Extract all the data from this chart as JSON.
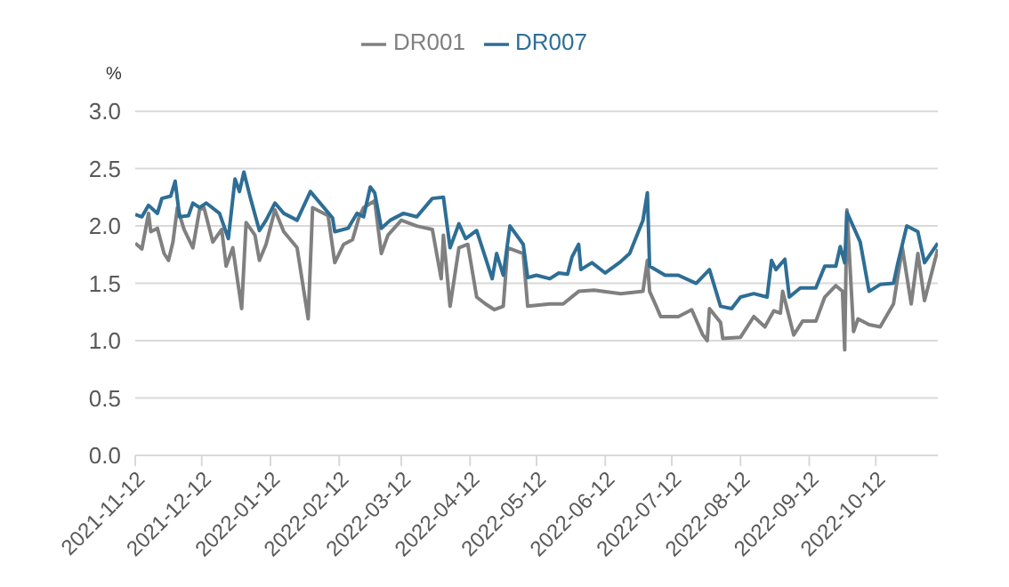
{
  "chart_data": {
    "type": "line",
    "ylabel": "%",
    "xlim": [
      "2021-11-12",
      "2022-11-09"
    ],
    "xticks": [
      "2021-11-12",
      "2021-12-12",
      "2022-01-12",
      "2022-02-12",
      "2022-03-12",
      "2022-04-12",
      "2022-05-12",
      "2022-06-12",
      "2022-07-12",
      "2022-08-12",
      "2022-09-12",
      "2022-10-12"
    ],
    "ylim": [
      0,
      3
    ],
    "yticks": [
      {
        "value": 0,
        "label": "0.0"
      },
      {
        "value": 0.5,
        "label": "0.5"
      },
      {
        "value": 1,
        "label": "1.0"
      },
      {
        "value": 1.5,
        "label": "1.5"
      },
      {
        "value": 2,
        "label": "2.0"
      },
      {
        "value": 2.5,
        "label": "2.5"
      },
      {
        "value": 3,
        "label": "3.0"
      }
    ],
    "grid": "y",
    "legend": "top",
    "marker": "none",
    "line_style": "solid",
    "series": [
      {
        "name": "DR001",
        "color": "#808080",
        "x": [
          "2021-11-12",
          "2021-11-15",
          "2021-11-18",
          "2021-11-19",
          "2021-11-22",
          "2021-11-25",
          "2021-11-27",
          "2021-11-29",
          "2021-12-01",
          "2021-12-04",
          "2021-12-08",
          "2021-12-11",
          "2021-12-13",
          "2021-12-17",
          "2021-12-21",
          "2021-12-23",
          "2021-12-26",
          "2021-12-30",
          "2022-01-01",
          "2022-01-05",
          "2022-01-07",
          "2022-01-10",
          "2022-01-14",
          "2022-01-18",
          "2022-01-24",
          "2022-01-29",
          "2022-01-31",
          "2022-02-07",
          "2022-02-10",
          "2022-02-14",
          "2022-02-18",
          "2022-02-21",
          "2022-02-23",
          "2022-02-28",
          "2022-03-03",
          "2022-03-06",
          "2022-03-12",
          "2022-03-19",
          "2022-03-26",
          "2022-03-30",
          "2022-03-31",
          "2022-04-03",
          "2022-04-07",
          "2022-04-11",
          "2022-04-15",
          "2022-04-19",
          "2022-04-23",
          "2022-04-27",
          "2022-04-29",
          "2022-05-06",
          "2022-05-08",
          "2022-05-18",
          "2022-05-24",
          "2022-05-31",
          "2022-06-07",
          "2022-06-19",
          "2022-06-29",
          "2022-07-01",
          "2022-07-02",
          "2022-07-05",
          "2022-07-07",
          "2022-07-15",
          "2022-07-21",
          "2022-07-26",
          "2022-07-28",
          "2022-07-29",
          "2022-08-03",
          "2022-08-04",
          "2022-08-12",
          "2022-08-18",
          "2022-08-23",
          "2022-08-27",
          "2022-08-30",
          "2022-08-31",
          "2022-09-05",
          "2022-09-09",
          "2022-09-15",
          "2022-09-19",
          "2022-09-24",
          "2022-09-27",
          "2022-09-28",
          "2022-09-29",
          "2022-10-02",
          "2022-10-04",
          "2022-10-09",
          "2022-10-14",
          "2022-10-20",
          "2022-10-24",
          "2022-10-28",
          "2022-10-31",
          "2022-11-03",
          "2022-11-09"
        ],
        "values": [
          1.85,
          1.8,
          2.11,
          1.95,
          1.98,
          1.76,
          1.7,
          1.86,
          2.16,
          1.97,
          1.81,
          2.14,
          2.16,
          1.86,
          1.97,
          1.65,
          1.81,
          1.28,
          2.03,
          1.92,
          1.7,
          1.84,
          2.14,
          1.95,
          1.81,
          1.19,
          2.16,
          2.09,
          1.68,
          1.84,
          1.88,
          2.08,
          2.16,
          2.22,
          1.76,
          1.92,
          2.05,
          2.0,
          1.97,
          1.54,
          1.92,
          1.3,
          1.81,
          1.84,
          1.38,
          1.32,
          1.27,
          1.3,
          1.81,
          1.76,
          1.3,
          1.32,
          1.32,
          1.43,
          1.44,
          1.41,
          1.43,
          1.7,
          1.43,
          1.3,
          1.21,
          1.21,
          1.27,
          1.05,
          1.0,
          1.28,
          1.16,
          1.02,
          1.03,
          1.21,
          1.12,
          1.26,
          1.24,
          1.43,
          1.05,
          1.17,
          1.17,
          1.38,
          1.48,
          1.43,
          0.92,
          2.14,
          1.08,
          1.19,
          1.14,
          1.12,
          1.32,
          1.81,
          1.32,
          1.76,
          1.35,
          1.8
        ]
      },
      {
        "name": "DR007",
        "color": "#2e6e95",
        "x": [
          "2021-11-12",
          "2021-11-15",
          "2021-11-18",
          "2021-11-22",
          "2021-11-24",
          "2021-11-28",
          "2021-11-30",
          "2021-12-02",
          "2021-12-06",
          "2021-12-08",
          "2021-12-11",
          "2021-12-14",
          "2021-12-20",
          "2021-12-24",
          "2021-12-27",
          "2021-12-29",
          "2021-12-31",
          "2022-01-03",
          "2022-01-07",
          "2022-01-10",
          "2022-01-14",
          "2022-01-18",
          "2022-01-24",
          "2022-01-30",
          "2022-02-09",
          "2022-02-10",
          "2022-02-16",
          "2022-02-20",
          "2022-02-23",
          "2022-02-26",
          "2022-02-28",
          "2022-03-03",
          "2022-03-07",
          "2022-03-13",
          "2022-03-19",
          "2022-03-26",
          "2022-03-31",
          "2022-04-03",
          "2022-04-07",
          "2022-04-10",
          "2022-04-15",
          "2022-04-18",
          "2022-04-22",
          "2022-04-24",
          "2022-04-27",
          "2022-04-30",
          "2022-05-06",
          "2022-05-08",
          "2022-05-12",
          "2022-05-18",
          "2022-05-22",
          "2022-05-26",
          "2022-05-28",
          "2022-05-31",
          "2022-06-01",
          "2022-06-06",
          "2022-06-12",
          "2022-06-19",
          "2022-06-23",
          "2022-06-29",
          "2022-07-01",
          "2022-07-02",
          "2022-07-09",
          "2022-07-15",
          "2022-07-23",
          "2022-07-29",
          "2022-08-03",
          "2022-08-08",
          "2022-08-12",
          "2022-08-18",
          "2022-08-24",
          "2022-08-26",
          "2022-08-28",
          "2022-09-01",
          "2022-09-03",
          "2022-09-08",
          "2022-09-15",
          "2022-09-19",
          "2022-09-24",
          "2022-09-26",
          "2022-09-28",
          "2022-09-29",
          "2022-10-05",
          "2022-10-09",
          "2022-10-14",
          "2022-10-20",
          "2022-10-22",
          "2022-10-26",
          "2022-10-31",
          "2022-11-03",
          "2022-11-09"
        ],
        "values": [
          2.1,
          2.08,
          2.18,
          2.11,
          2.24,
          2.26,
          2.39,
          2.08,
          2.09,
          2.2,
          2.16,
          2.2,
          2.11,
          1.89,
          2.41,
          2.3,
          2.47,
          2.24,
          1.96,
          2.05,
          2.2,
          2.11,
          2.05,
          2.3,
          2.07,
          1.95,
          1.98,
          2.11,
          2.08,
          2.34,
          2.29,
          1.98,
          2.05,
          2.11,
          2.08,
          2.24,
          2.25,
          1.81,
          2.02,
          1.89,
          1.96,
          1.78,
          1.54,
          1.76,
          1.57,
          2.0,
          1.84,
          1.55,
          1.57,
          1.54,
          1.59,
          1.58,
          1.73,
          1.84,
          1.62,
          1.68,
          1.59,
          1.69,
          1.76,
          2.05,
          2.29,
          1.65,
          1.57,
          1.57,
          1.5,
          1.62,
          1.3,
          1.28,
          1.38,
          1.41,
          1.38,
          1.7,
          1.62,
          1.71,
          1.38,
          1.46,
          1.46,
          1.65,
          1.65,
          1.82,
          1.68,
          2.12,
          1.86,
          1.43,
          1.49,
          1.5,
          1.68,
          2.0,
          1.95,
          1.68,
          1.85
        ]
      }
    ]
  }
}
